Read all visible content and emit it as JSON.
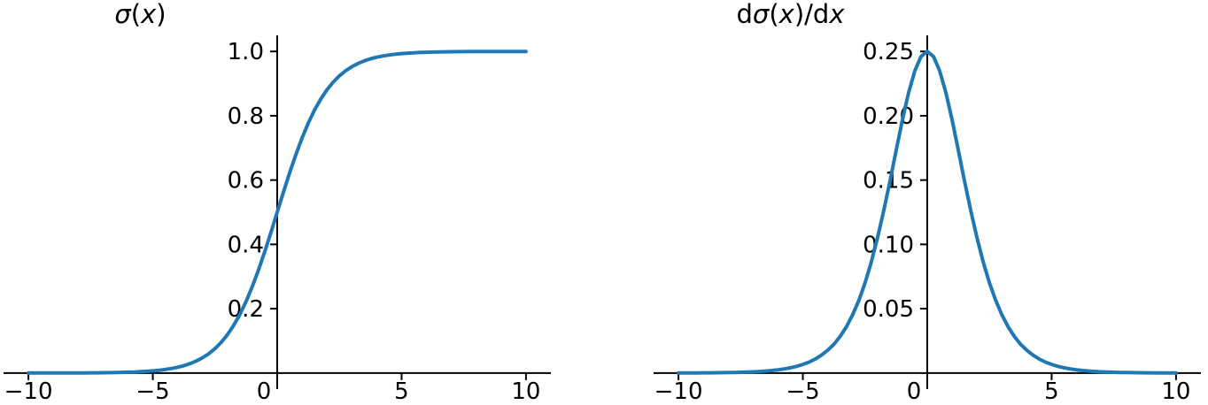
{
  "figure": {
    "background": "#ffffff",
    "text_color": "#000000",
    "axis_color": "#000000"
  },
  "chart_data": [
    {
      "type": "line",
      "title": "σ(x)",
      "title_segments": [
        {
          "text": "σ",
          "italic": true
        },
        {
          "text": "(",
          "italic": false
        },
        {
          "text": "x",
          "italic": true
        },
        {
          "text": ")",
          "italic": false
        }
      ],
      "xlabel": "",
      "ylabel": "",
      "xlim": [
        -11,
        11
      ],
      "ylim": [
        -0.05,
        1.05
      ],
      "xticks": [
        -10,
        -5,
        0,
        5,
        10
      ],
      "xtick_labels": [
        "−10",
        "−5",
        "0",
        "5",
        "10"
      ],
      "yticks": [
        0.2,
        0.4,
        0.6,
        0.8,
        1.0
      ],
      "ytick_labels": [
        "0.2",
        "0.4",
        "0.6",
        "0.8",
        "1.0"
      ],
      "grid": false,
      "legend": "none",
      "line_color": "#1f77b4",
      "x_start": -10,
      "x_step": 0.25,
      "y": [
        4.5e-05,
        5.8e-05,
        7.5e-05,
        9.6e-05,
        0.000123,
        0.000159,
        0.000203,
        0.000261,
        0.000335,
        0.000431,
        0.000553,
        0.00071,
        0.000911,
        0.001169,
        0.001503,
        0.001927,
        0.002473,
        0.003173,
        0.00407,
        0.00522,
        0.006693,
        0.008577,
        0.010987,
        0.014064,
        0.017986,
        0.022977,
        0.029312,
        0.037327,
        0.047426,
        0.060087,
        0.075858,
        0.095349,
        0.119203,
        0.148047,
        0.182426,
        0.2227,
        0.268941,
        0.320821,
        0.377541,
        0.437823,
        0.5,
        0.562177,
        0.622459,
        0.679179,
        0.731059,
        0.7773,
        0.817574,
        0.851953,
        0.880797,
        0.904651,
        0.924142,
        0.939913,
        0.952574,
        0.962673,
        0.970688,
        0.977023,
        0.982014,
        0.985936,
        0.989013,
        0.991423,
        0.993307,
        0.99478,
        0.99593,
        0.996827,
        0.997527,
        0.998073,
        0.998497,
        0.998831,
        0.999089,
        0.99929,
        0.999447,
        0.999569,
        0.999665,
        0.999739,
        0.999797,
        0.999841,
        0.999877,
        0.999904,
        0.999925,
        0.999942,
        0.999955
      ]
    },
    {
      "type": "line",
      "title": "dσ(x)/dx",
      "title_segments": [
        {
          "text": "d",
          "italic": false
        },
        {
          "text": "σ",
          "italic": true
        },
        {
          "text": "(",
          "italic": false
        },
        {
          "text": "x",
          "italic": true
        },
        {
          "text": ")",
          "italic": false
        },
        {
          "text": "/d",
          "italic": false
        },
        {
          "text": "x",
          "italic": true
        }
      ],
      "xlabel": "",
      "ylabel": "",
      "xlim": [
        -11,
        11
      ],
      "ylim": [
        -0.0125,
        0.2625
      ],
      "xticks": [
        -10,
        -5,
        0,
        5,
        10
      ],
      "xtick_labels": [
        "−10",
        "−5",
        "0",
        "5",
        "10"
      ],
      "yticks": [
        0.05,
        0.1,
        0.15,
        0.2,
        0.25
      ],
      "ytick_labels": [
        "0.05",
        "0.10",
        "0.15",
        "0.20",
        "0.25"
      ],
      "grid": false,
      "legend": "none",
      "line_color": "#1f77b4",
      "x_start": -10,
      "x_step": 0.25,
      "y": [
        4.5e-05,
        5.8e-05,
        7.5e-05,
        9.6e-05,
        0.000123,
        0.000159,
        0.000203,
        0.000261,
        0.000335,
        0.000431,
        0.000552,
        0.000709,
        0.00091,
        0.001168,
        0.001501,
        0.001923,
        0.002466,
        0.003163,
        0.004054,
        0.005193,
        0.006648,
        0.008503,
        0.010866,
        0.013866,
        0.017663,
        0.022449,
        0.028453,
        0.035934,
        0.045177,
        0.056476,
        0.070104,
        0.086257,
        0.104994,
        0.12613,
        0.149146,
        0.173105,
        0.196612,
        0.217895,
        0.235004,
        0.246134,
        0.25,
        0.246134,
        0.235004,
        0.217895,
        0.196612,
        0.173105,
        0.149146,
        0.12613,
        0.104994,
        0.086257,
        0.070104,
        0.056476,
        0.045177,
        0.035934,
        0.028453,
        0.022449,
        0.017663,
        0.013866,
        0.010866,
        0.008503,
        0.006648,
        0.005193,
        0.004054,
        0.003163,
        0.002466,
        0.001923,
        0.001501,
        0.001168,
        0.00091,
        0.000709,
        0.000552,
        0.000431,
        0.000335,
        0.000261,
        0.000203,
        0.000159,
        0.000123,
        9.6e-05,
        7.5e-05,
        5.8e-05,
        4.5e-05
      ]
    }
  ]
}
